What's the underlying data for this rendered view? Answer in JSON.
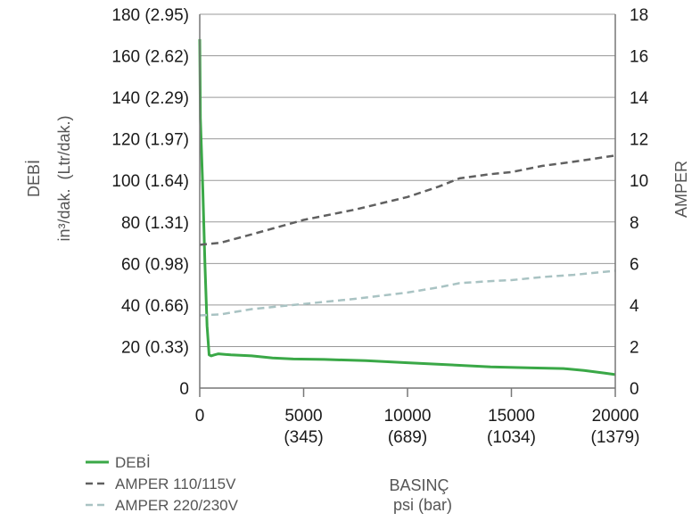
{
  "chart_data": {
    "type": "line",
    "left_axis": {
      "title": "DEBİ",
      "unit": "in³/dak.  (Ltr/dak.)",
      "min": 0,
      "max": 180,
      "ticks": [
        {
          "value": 0,
          "label": "0"
        },
        {
          "value": 20,
          "label": "20 (0.33)"
        },
        {
          "value": 40,
          "label": "40 (0.66)"
        },
        {
          "value": 60,
          "label": "60 (0.98)"
        },
        {
          "value": 80,
          "label": "80 (1.31)"
        },
        {
          "value": 100,
          "label": "100 (1.64)"
        },
        {
          "value": 120,
          "label": "120 (1.97)"
        },
        {
          "value": 140,
          "label": "140 (2.29)"
        },
        {
          "value": 160,
          "label": "160 (2.62)"
        },
        {
          "value": 180,
          "label": "180 (2.95)"
        }
      ]
    },
    "right_axis": {
      "title": "AMPER",
      "min": 0,
      "max": 18,
      "ticks": [
        {
          "value": 0,
          "label": "0"
        },
        {
          "value": 2,
          "label": "2"
        },
        {
          "value": 4,
          "label": "4"
        },
        {
          "value": 6,
          "label": "6"
        },
        {
          "value": 8,
          "label": "8"
        },
        {
          "value": 10,
          "label": "10"
        },
        {
          "value": 12,
          "label": "12"
        },
        {
          "value": 14,
          "label": "14"
        },
        {
          "value": 16,
          "label": "16"
        },
        {
          "value": 18,
          "label": "18"
        }
      ]
    },
    "x_axis": {
      "title": "BASINÇ",
      "unit": "psi (bar)",
      "min": 0,
      "max": 20000,
      "ticks": [
        {
          "value": 0,
          "line1": "0",
          "line2": ""
        },
        {
          "value": 5000,
          "line1": "5000",
          "line2": "(345)"
        },
        {
          "value": 10000,
          "line1": "10000",
          "line2": "(689)"
        },
        {
          "value": 15000,
          "line1": "15000",
          "line2": "(1034)"
        },
        {
          "value": 20000,
          "line1": "20000",
          "line2": "(1379)"
        }
      ]
    },
    "grid": true,
    "legend_position": "bottom-left",
    "series": [
      {
        "name": "DEBİ",
        "axis": "left",
        "style": "solid",
        "color": "#3aa847",
        "points": [
          [
            0,
            168
          ],
          [
            30,
            130
          ],
          [
            80,
            115
          ],
          [
            150,
            95
          ],
          [
            250,
            60
          ],
          [
            350,
            30
          ],
          [
            450,
            16
          ],
          [
            550,
            15.5
          ],
          [
            700,
            16
          ],
          [
            900,
            16.5
          ],
          [
            1500,
            16
          ],
          [
            2500,
            15.5
          ],
          [
            3500,
            14.5
          ],
          [
            4500,
            14
          ],
          [
            6000,
            13.8
          ],
          [
            8000,
            13.2
          ],
          [
            10000,
            12.2
          ],
          [
            12000,
            11.2
          ],
          [
            14000,
            10.2
          ],
          [
            16000,
            9.7
          ],
          [
            17500,
            9.4
          ],
          [
            18500,
            8.5
          ],
          [
            19500,
            7.2
          ],
          [
            20000,
            6.5
          ]
        ]
      },
      {
        "name": "AMPER 110/115V",
        "axis": "right",
        "style": "dashed",
        "color": "#606060",
        "points": [
          [
            0,
            6.9
          ],
          [
            1000,
            7.0
          ],
          [
            2500,
            7.4
          ],
          [
            5000,
            8.1
          ],
          [
            7500,
            8.6
          ],
          [
            10000,
            9.2
          ],
          [
            11500,
            9.7
          ],
          [
            12500,
            10.1
          ],
          [
            14000,
            10.3
          ],
          [
            15000,
            10.4
          ],
          [
            16500,
            10.7
          ],
          [
            18000,
            10.9
          ],
          [
            20000,
            11.2
          ]
        ]
      },
      {
        "name": "AMPER 220/230V",
        "axis": "right",
        "style": "dashed",
        "color": "#a9c3c3",
        "points": [
          [
            0,
            3.5
          ],
          [
            1000,
            3.55
          ],
          [
            2500,
            3.8
          ],
          [
            5000,
            4.05
          ],
          [
            7500,
            4.3
          ],
          [
            10000,
            4.6
          ],
          [
            11500,
            4.85
          ],
          [
            12500,
            5.05
          ],
          [
            14000,
            5.15
          ],
          [
            15000,
            5.2
          ],
          [
            16500,
            5.35
          ],
          [
            18000,
            5.45
          ],
          [
            20000,
            5.65
          ]
        ]
      }
    ]
  }
}
